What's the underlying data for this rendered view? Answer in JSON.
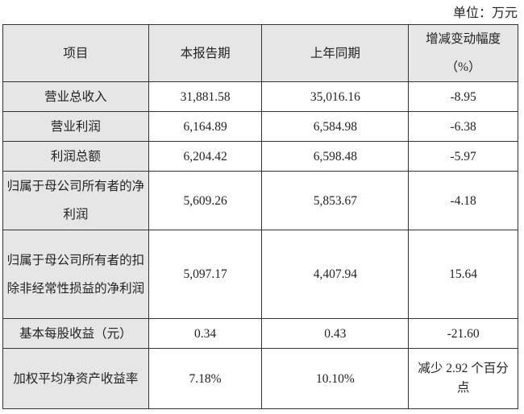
{
  "unit": "单位：万元",
  "headers": [
    "项目",
    "本报告期",
    "上年同期",
    "增减变动幅度",
    "（%）"
  ],
  "rows": [
    {
      "item": "营业总收入",
      "current": "31,881.58",
      "previous": "35,016.16",
      "change": "-8.95"
    },
    {
      "item": "营业利润",
      "current": "6,164.89",
      "previous": "6,584.98",
      "change": "-6.38"
    },
    {
      "item": "利润总额",
      "current": "6,204.42",
      "previous": "6,598.48",
      "change": "-5.97"
    },
    {
      "item": "归属于母公司所有者的净利润",
      "current": "5,609.26",
      "previous": "5,853.67",
      "change": "-4.18"
    },
    {
      "item": "归属于母公司所有者的扣除非经常性损益的净利润",
      "current": "5,097.17",
      "previous": "4,407.94",
      "change": "15.64"
    },
    {
      "item": "基本每股收益（元）",
      "current": "0.34",
      "previous": "0.43",
      "change": "-21.60"
    },
    {
      "item": "加权平均净资产收益率",
      "current": "7.18%",
      "previous": "10.10%",
      "change": "减少 2.92 个百分点"
    }
  ]
}
